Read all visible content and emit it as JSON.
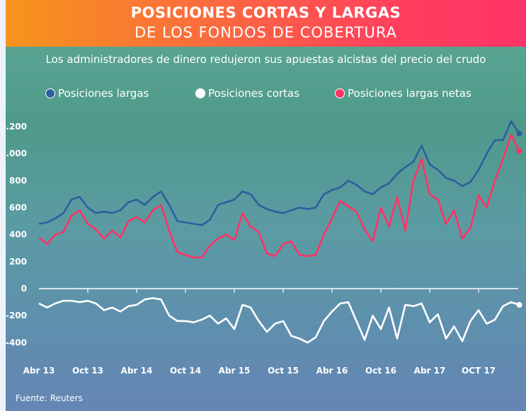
{
  "header": {
    "title_line1": "POSICIONES CORTAS Y LARGAS",
    "title_line2": "DE LOS FONDOS DE COBERTURA"
  },
  "subtitle": "Los administradores de dinero redujeron sus apuestas alcistas del precio del crudo",
  "source": "Fuente: Reuters",
  "colors": {
    "header_start": "#f7941d",
    "header_end": "#ff3366",
    "longs": "#2e5e9e",
    "shorts": "#ffffff",
    "net": "#ff3366"
  },
  "chart_data": {
    "type": "line",
    "title": "POSICIONES CORTAS Y LARGAS DE LOS FONDOS DE COBERTURA",
    "subtitle": "Los administradores de dinero redujeron sus apuestas alcistas del precio del crudo",
    "ylim": [
      -500,
      1250
    ],
    "yticks": [
      {
        "v": 1200,
        "label": "1.200"
      },
      {
        "v": 1000,
        "label": "1.000"
      },
      {
        "v": 800,
        "label": "800"
      },
      {
        "v": 600,
        "label": "600"
      },
      {
        "v": 400,
        "label": "400"
      },
      {
        "v": 200,
        "label": "200"
      },
      {
        "v": 0,
        "label": "0"
      },
      {
        "v": -200,
        "label": "-200"
      },
      {
        "v": -400,
        "label": "-400"
      }
    ],
    "xticks": [
      "Abr 13",
      "Oct 13",
      "Abr 14",
      "Oct 14",
      "Abr 15",
      "Oct 15",
      "Abr 16",
      "Oct 16",
      "Abr 17",
      "OCT 17"
    ],
    "x_start": "2013-04",
    "x_interval": "monthly",
    "legend_position": "top",
    "grid": false,
    "series": [
      {
        "name": "Posiciones largas",
        "color": "#2e5e9e",
        "values": [
          480,
          490,
          520,
          560,
          660,
          680,
          600,
          560,
          570,
          560,
          580,
          640,
          660,
          620,
          680,
          720,
          620,
          500,
          490,
          480,
          470,
          510,
          620,
          640,
          660,
          720,
          700,
          620,
          590,
          570,
          560,
          580,
          600,
          590,
          600,
          700,
          730,
          750,
          800,
          770,
          720,
          700,
          750,
          780,
          850,
          900,
          940,
          1060,
          920,
          880,
          820,
          800,
          760,
          790,
          880,
          1000,
          1100,
          1100,
          1240,
          1150
        ]
      },
      {
        "name": "Posiciones cortas",
        "color": "#ffffff",
        "values": [
          -110,
          -140,
          -110,
          -90,
          -90,
          -100,
          -90,
          -110,
          -160,
          -140,
          -170,
          -130,
          -120,
          -80,
          -70,
          -80,
          -200,
          -240,
          -240,
          -250,
          -230,
          -200,
          -260,
          -220,
          -300,
          -120,
          -140,
          -240,
          -320,
          -260,
          -240,
          -350,
          -370,
          -400,
          -360,
          -240,
          -170,
          -110,
          -100,
          -240,
          -380,
          -200,
          -300,
          -140,
          -370,
          -120,
          -130,
          -110,
          -250,
          -190,
          -370,
          -280,
          -390,
          -240,
          -160,
          -260,
          -230,
          -130,
          -100,
          -120
        ]
      },
      {
        "name": "Posiciones largas netas",
        "color": "#ff3366",
        "values": [
          380,
          330,
          400,
          420,
          540,
          580,
          480,
          440,
          370,
          430,
          380,
          500,
          530,
          490,
          580,
          620,
          430,
          270,
          250,
          230,
          230,
          320,
          370,
          400,
          360,
          560,
          460,
          420,
          260,
          240,
          330,
          350,
          250,
          240,
          250,
          400,
          520,
          650,
          610,
          570,
          440,
          350,
          600,
          460,
          680,
          430,
          800,
          960,
          700,
          660,
          480,
          580,
          370,
          450,
          690,
          600,
          800,
          960,
          1140,
          1020
        ]
      }
    ]
  }
}
